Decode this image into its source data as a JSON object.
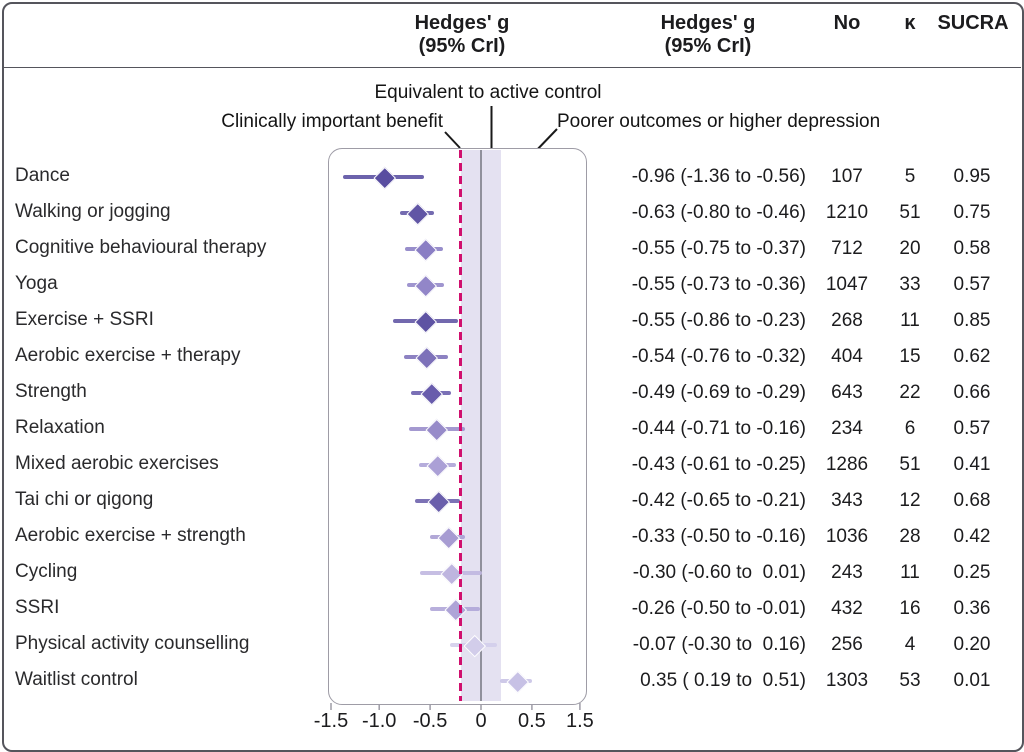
{
  "header": {
    "effect_col_1": "Hedges' g\n(95% CrI)",
    "effect_col_2": "Hedges' g\n(95% CrI)",
    "n_col": "No",
    "k_col": "κ",
    "sucra_col": "SUCRA"
  },
  "annotations": {
    "equivalent": "Equivalent to active control",
    "benefit": "Clinically important benefit",
    "poorer": "Poorer outcomes or higher depression"
  },
  "colors": {
    "benefit_line": "#d00f6e",
    "band": "#e4e1f1",
    "zero_line": "#90909c",
    "box_border": "#9e9ca6",
    "pointer": "#1a1a1a"
  },
  "chart_data": {
    "type": "scatter",
    "variant": "forest-plot",
    "title": "",
    "xlabel": "Hedges' g (95% CrI)",
    "x_ticks": [
      -1.5,
      -1.0,
      -0.5,
      0,
      0.5,
      1.5
    ],
    "x_tick_labels": [
      "-1.5",
      "-1.0",
      "-0.5",
      "0",
      "0.5",
      "1.5"
    ],
    "shaded_band": [
      -0.2,
      0.2
    ],
    "benefit_threshold": -0.2,
    "zero_reference": 0,
    "rows": [
      {
        "label": "Dance",
        "estimate": -0.96,
        "lo": -1.36,
        "hi": -0.56,
        "display": "-0.96 (-1.36 to -0.56)",
        "n": "107",
        "k": "5",
        "sucra": "0.95",
        "color": "#584da0"
      },
      {
        "label": "Walking or jogging",
        "estimate": -0.63,
        "lo": -0.8,
        "hi": -0.46,
        "display": "-0.63 (-0.80 to -0.46)",
        "n": "1210",
        "k": "51",
        "sucra": "0.75",
        "color": "#6156a5"
      },
      {
        "label": "Cognitive behavioural therapy",
        "estimate": -0.55,
        "lo": -0.75,
        "hi": -0.37,
        "display": "-0.55 (-0.75 to -0.37)",
        "n": "712",
        "k": "20",
        "sucra": "0.58",
        "color": "#8a7ec4"
      },
      {
        "label": "Yoga",
        "estimate": -0.55,
        "lo": -0.73,
        "hi": -0.36,
        "display": "-0.55 (-0.73 to -0.36)",
        "n": "1047",
        "k": "33",
        "sucra": "0.57",
        "color": "#9286c8"
      },
      {
        "label": "Exercise + SSRI",
        "estimate": -0.55,
        "lo": -0.86,
        "hi": -0.23,
        "display": "-0.55 (-0.86 to -0.23)",
        "n": "268",
        "k": "11",
        "sucra": "0.85",
        "color": "#5e53a3"
      },
      {
        "label": "Aerobic exercise + therapy",
        "estimate": -0.54,
        "lo": -0.76,
        "hi": -0.32,
        "display": "-0.54 (-0.76 to -0.32)",
        "n": "404",
        "k": "15",
        "sucra": "0.62",
        "color": "#7d71b9"
      },
      {
        "label": "Strength",
        "estimate": -0.49,
        "lo": -0.69,
        "hi": -0.29,
        "display": "-0.49 (-0.69 to -0.29)",
        "n": "643",
        "k": "22",
        "sucra": "0.66",
        "color": "#685cac"
      },
      {
        "label": "Relaxation",
        "estimate": -0.44,
        "lo": -0.71,
        "hi": -0.16,
        "display": "-0.44 (-0.71 to -0.16)",
        "n": "234",
        "k": "6",
        "sucra": "0.57",
        "color": "#978bc9"
      },
      {
        "label": "Mixed aerobic exercises",
        "estimate": -0.43,
        "lo": -0.61,
        "hi": -0.25,
        "display": "-0.43 (-0.61 to -0.25)",
        "n": "1286",
        "k": "51",
        "sucra": "0.41",
        "color": "#aba0d6"
      },
      {
        "label": "Tai chi or qigong",
        "estimate": -0.42,
        "lo": -0.65,
        "hi": -0.21,
        "display": "-0.42 (-0.65 to -0.21)",
        "n": "343",
        "k": "12",
        "sucra": "0.68",
        "color": "#6a5fab"
      },
      {
        "label": "Aerobic exercise + strength",
        "estimate": -0.33,
        "lo": -0.5,
        "hi": -0.16,
        "display": "-0.33 (-0.50 to -0.16)",
        "n": "1036",
        "k": "28",
        "sucra": "0.42",
        "color": "#a79cd2"
      },
      {
        "label": "Cycling",
        "estimate": -0.3,
        "lo": -0.6,
        "hi": 0.01,
        "display": "-0.30 (-0.60 to  0.01)",
        "n": "243",
        "k": "11",
        "sucra": "0.25",
        "color": "#beb5df"
      },
      {
        "label": "SSRI",
        "estimate": -0.26,
        "lo": -0.5,
        "hi": -0.01,
        "display": "-0.26 (-0.50 to -0.01)",
        "n": "432",
        "k": "16",
        "sucra": "0.36",
        "color": "#aea4d7"
      },
      {
        "label": "Physical activity counselling",
        "estimate": -0.07,
        "lo": -0.3,
        "hi": 0.16,
        "display": "-0.07 (-0.30 to  0.16)",
        "n": "256",
        "k": "4",
        "sucra": "0.20",
        "color": "#d2cdea"
      },
      {
        "label": "Waitlist control",
        "estimate": 0.35,
        "lo": 0.19,
        "hi": 0.51,
        "display": "0.35 ( 0.19 to  0.51)",
        "n": "1303",
        "k": "53",
        "sucra": "0.01",
        "color": "#c7c1e5"
      }
    ]
  }
}
